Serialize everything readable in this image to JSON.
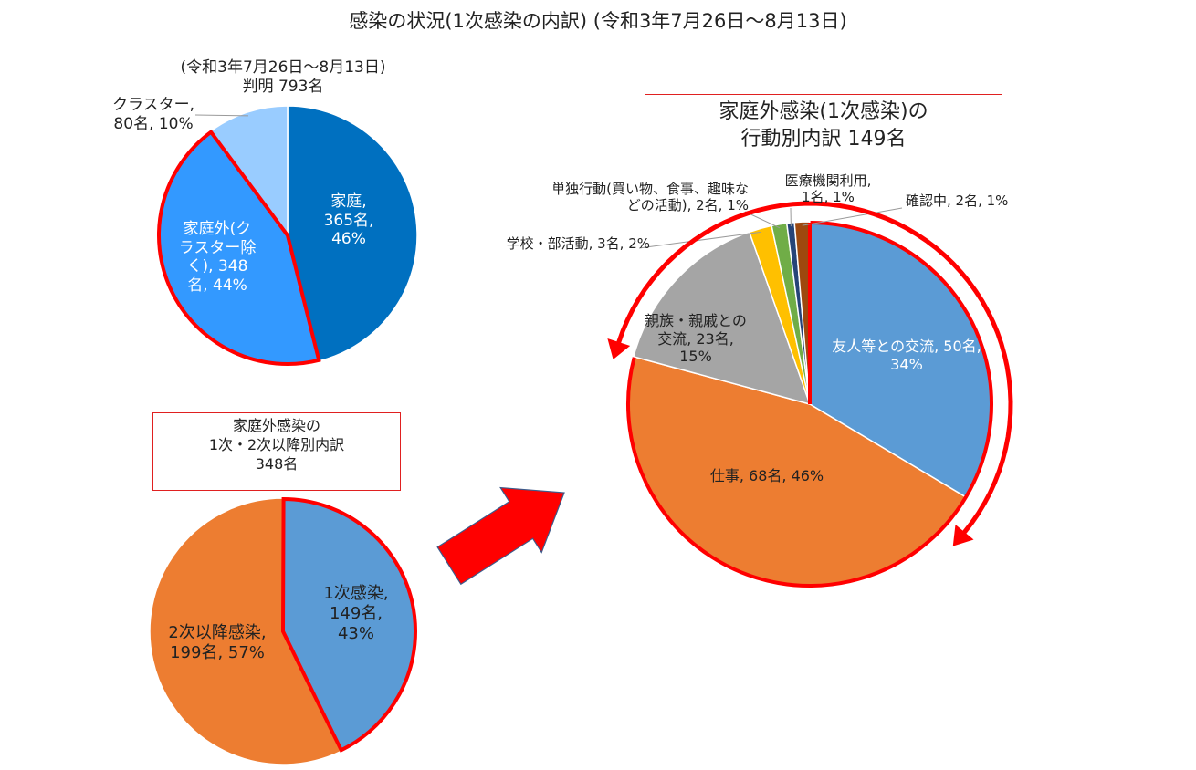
{
  "title": "感染の状況(1次感染の内訳) (令和3年7月26日～8月13日)",
  "chart_data": [
    {
      "type": "pie",
      "title_lines": [
        "(令和3年7月26日～8月13日)",
        "判明 793名"
      ],
      "slices": [
        {
          "name": "家庭",
          "count_text": "365名",
          "pct_text": "46%",
          "value": 365,
          "color": "#0070c0"
        },
        {
          "name": "家庭外(クラスター除く)",
          "count_text": "348名",
          "pct_text": "44%",
          "value": 348,
          "color": "#3399ff"
        },
        {
          "name": "クラスター",
          "count_text": "80名",
          "pct_text": "10%",
          "value": 80,
          "color": "#99ccff"
        }
      ],
      "labels": {
        "home": [
          "家庭,",
          "365名,",
          "46%"
        ],
        "outside": [
          "家庭外(ク",
          "ラスター除",
          "く), 348",
          "名, 44%"
        ],
        "cluster": [
          "クラスター,",
          "80名, 10%"
        ]
      }
    },
    {
      "type": "pie",
      "title_lines": [
        "家庭外感染の",
        "1次・2次以降別内訳",
        "348名"
      ],
      "slices": [
        {
          "name": "1次感染",
          "value": 149,
          "color": "#5b9bd5"
        },
        {
          "name": "2次以降感染",
          "value": 199,
          "color": "#ed7d31"
        }
      ],
      "labels": {
        "primary": [
          "1次感染,",
          "149名,",
          "43%"
        ],
        "secondary": [
          "2次以降感染,",
          "199名, 57%"
        ]
      }
    },
    {
      "type": "pie",
      "title_lines": [
        "家庭外感染(1次感染)の",
        "行動別内訳 149名"
      ],
      "slices": [
        {
          "name": "友人等との交流",
          "value": 50,
          "color": "#5b9bd5"
        },
        {
          "name": "仕事",
          "value": 68,
          "color": "#ed7d31"
        },
        {
          "name": "親族・親戚との交流",
          "value": 23,
          "color": "#a5a5a5"
        },
        {
          "name": "学校・部活動",
          "value": 3,
          "color": "#ffc000"
        },
        {
          "name": "単独行動(買い物、食事、趣味などの活動)",
          "value": 2,
          "color": "#70ad47"
        },
        {
          "name": "医療機関利用",
          "value": 1,
          "color": "#264478"
        },
        {
          "name": "確認中",
          "value": 2,
          "color": "#9e480e"
        }
      ],
      "labels": {
        "friends": [
          "友人等との交流, 50名,",
          "34%"
        ],
        "work": [
          "仕事, 68名, 46%"
        ],
        "relatives": [
          "親族・親戚との",
          "交流, 23名,",
          "15%"
        ],
        "school": [
          "学校・部活動, 3名, 2%"
        ],
        "solo": [
          "単独行動(買い物、食事、趣味な",
          "どの活動), 2名, 1%"
        ],
        "medical": [
          "医療機関利用,",
          "1名, 1%"
        ],
        "checking": [
          "確認中, 2名, 1%"
        ]
      }
    }
  ],
  "colors": {
    "highlight": "#ff0000",
    "box_border": "#e02020",
    "leader": "#9a9a9a"
  }
}
